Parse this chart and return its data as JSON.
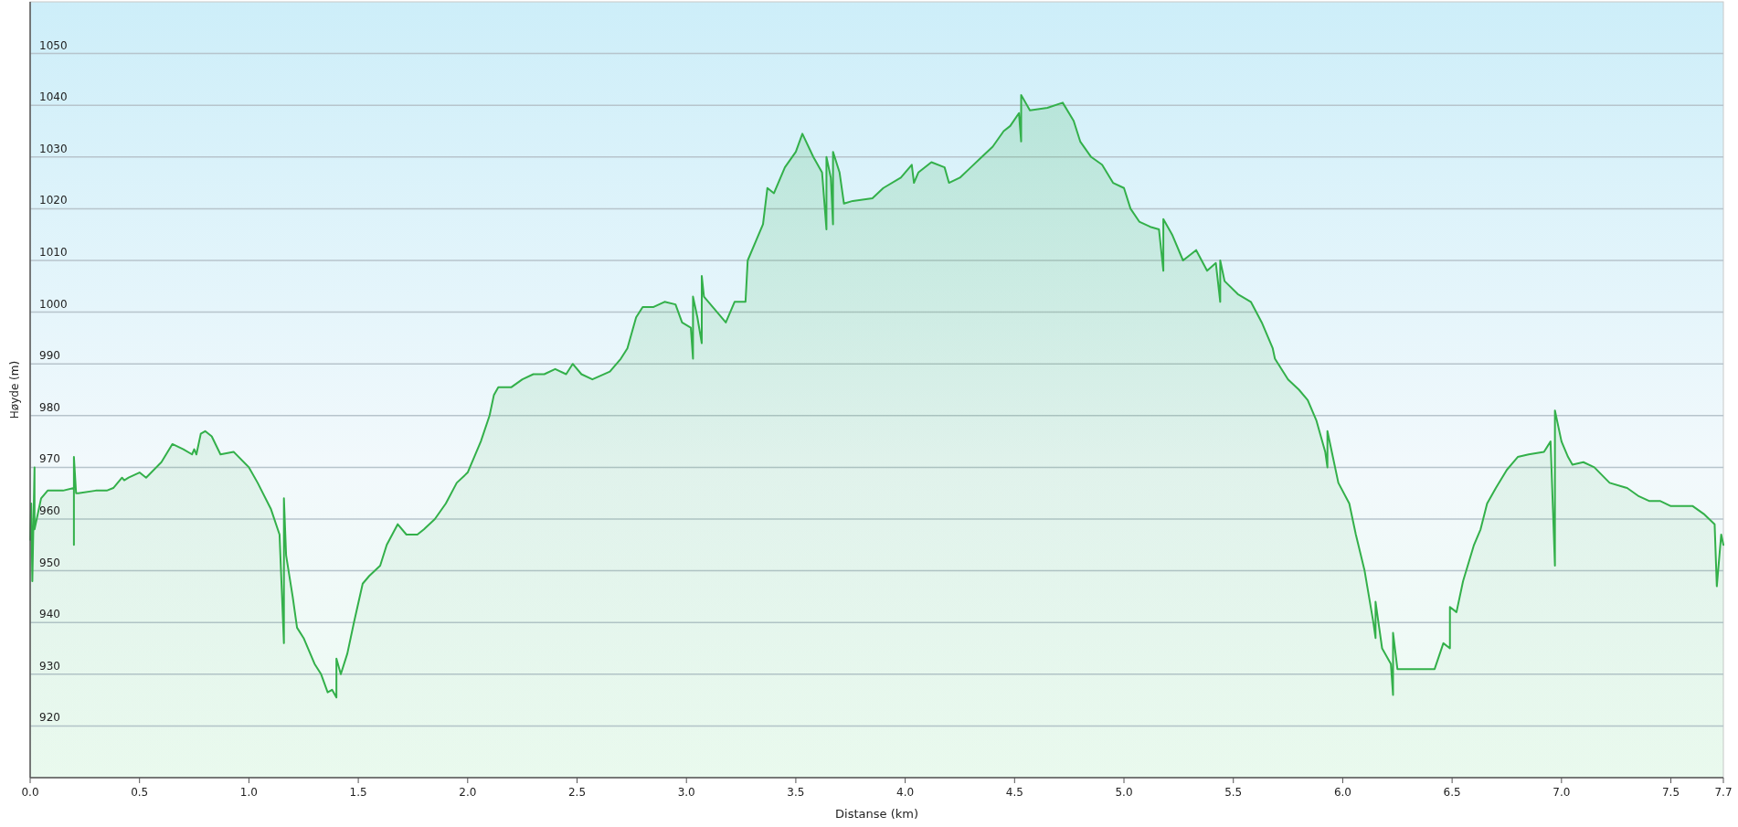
{
  "chart_data": {
    "type": "area",
    "xlabel": "Distanse  (km)",
    "ylabel": "Høyde (m)",
    "grid": "y",
    "marker": "none",
    "line_style": "solid",
    "xlim": [
      0,
      7.74
    ],
    "xticks": [
      {
        "value": 0,
        "label": "0.0"
      },
      0.5,
      {
        "value": 1,
        "label": "1.0"
      },
      1.5,
      {
        "value": 2,
        "label": "2.0"
      },
      2.5,
      {
        "value": 3,
        "label": "3.0"
      },
      3.5,
      {
        "value": 4,
        "label": "4.0"
      },
      4.5,
      {
        "value": 5,
        "label": "5.0"
      },
      5.5,
      {
        "value": 6,
        "label": "6.0"
      },
      6.5,
      {
        "value": 7,
        "label": "7.0"
      },
      7.5,
      {
        "value": 7.74,
        "label": "7.7"
      }
    ],
    "ylim": [
      910,
      1060
    ],
    "yticks": [
      920,
      930,
      940,
      950,
      960,
      970,
      980,
      990,
      1000,
      1010,
      1020,
      1030,
      1040,
      1050
    ],
    "series": [
      {
        "color": "#33b04a",
        "x": [
          0,
          0.005,
          0.01,
          0.02,
          0.02,
          0.03,
          0.05,
          0.08,
          0.15,
          0.2,
          0.2,
          0.2,
          0.21,
          0.22,
          0.3,
          0.35,
          0.38,
          0.42,
          0.43,
          0.45,
          0.5,
          0.53,
          0.6,
          0.65,
          0.7,
          0.74,
          0.75,
          0.76,
          0.78,
          0.8,
          0.83,
          0.87,
          0.93,
          1.0,
          1.04,
          1.1,
          1.14,
          1.16,
          1.16,
          1.17,
          1.2,
          1.22,
          1.25,
          1.3,
          1.33,
          1.36,
          1.38,
          1.4,
          1.4,
          1.42,
          1.45,
          1.48,
          1.52,
          1.55,
          1.6,
          1.63,
          1.68,
          1.72,
          1.77,
          1.8,
          1.85,
          1.9,
          1.95,
          2.0,
          2.03,
          2.06,
          2.1,
          2.12,
          2.14,
          2.2,
          2.25,
          2.3,
          2.35,
          2.4,
          2.45,
          2.48,
          2.52,
          2.57,
          2.65,
          2.7,
          2.73,
          2.77,
          2.8,
          2.85,
          2.9,
          2.95,
          2.98,
          3.02,
          3.03,
          3.03,
          3.05,
          3.07,
          3.07,
          3.08,
          3.15,
          3.18,
          3.22,
          3.27,
          3.28,
          3.32,
          3.35,
          3.37,
          3.4,
          3.45,
          3.5,
          3.53,
          3.58,
          3.62,
          3.64,
          3.64,
          3.66,
          3.67,
          3.67,
          3.7,
          3.72,
          3.76,
          3.85,
          3.9,
          3.98,
          4.03,
          4.04,
          4.06,
          4.12,
          4.18,
          4.2,
          4.25,
          4.3,
          4.35,
          4.4,
          4.45,
          4.48,
          4.52,
          4.53,
          4.53,
          4.57,
          4.65,
          4.72,
          4.77,
          4.8,
          4.85,
          4.9,
          4.95,
          5.0,
          5.03,
          5.07,
          5.12,
          5.16,
          5.18,
          5.18,
          5.22,
          5.27,
          5.33,
          5.38,
          5.42,
          5.44,
          5.44,
          5.46,
          5.52,
          5.58,
          5.63,
          5.68,
          5.69,
          5.75,
          5.8,
          5.84,
          5.88,
          5.92,
          5.93,
          5.93,
          5.98,
          6.03,
          6.06,
          6.1,
          6.14,
          6.15,
          6.15,
          6.18,
          6.22,
          6.23,
          6.23,
          6.25,
          6.3,
          6.42,
          6.46,
          6.49,
          6.49,
          6.52,
          6.55,
          6.6,
          6.63,
          6.66,
          6.7,
          6.75,
          6.8,
          6.85,
          6.92,
          6.95,
          6.97,
          6.97,
          7.0,
          7.03,
          7.05,
          7.1,
          7.15,
          7.22,
          7.3,
          7.35,
          7.4,
          7.45,
          7.5,
          7.55,
          7.6,
          7.65,
          7.7,
          7.71,
          7.73,
          7.74
        ],
        "values": [
          956,
          963,
          948,
          970,
          958,
          960,
          964,
          965.5,
          965.5,
          966,
          955,
          972,
          965,
          965,
          965.5,
          965.5,
          966,
          968,
          967.5,
          968,
          969,
          968,
          971,
          974.5,
          973.5,
          972.5,
          973.5,
          972.5,
          976.5,
          977,
          976,
          972.5,
          973,
          970,
          967,
          962,
          957,
          936,
          964,
          953,
          945,
          939,
          937,
          932,
          930,
          926.5,
          927,
          925.5,
          933,
          930,
          934,
          940,
          947.5,
          949,
          951,
          955,
          959,
          957,
          957,
          958,
          960,
          963,
          967,
          969,
          972,
          975,
          980,
          984,
          985.5,
          985.5,
          987,
          988,
          988,
          989,
          988,
          990,
          988,
          987,
          988.5,
          991,
          993,
          999,
          1001,
          1001,
          1002,
          1001.5,
          998,
          997,
          991,
          1003,
          999,
          994,
          1007,
          1003,
          999.5,
          998,
          1002,
          1002,
          1010,
          1014,
          1017,
          1024,
          1023,
          1028,
          1031,
          1034.5,
          1030,
          1027,
          1016,
          1030,
          1026,
          1017,
          1031,
          1027,
          1021,
          1021.5,
          1022,
          1024,
          1026,
          1028.5,
          1025,
          1027,
          1029,
          1028,
          1025,
          1026,
          1028,
          1030,
          1032,
          1035,
          1036,
          1038.5,
          1033,
          1042,
          1039,
          1039.5,
          1040.5,
          1037,
          1033,
          1030,
          1028.5,
          1025,
          1024,
          1020,
          1017.5,
          1016.5,
          1016,
          1008,
          1018,
          1015,
          1010,
          1012,
          1008,
          1009.5,
          1002,
          1010,
          1006,
          1003.5,
          1002,
          998,
          993,
          991,
          987,
          985,
          983,
          979,
          973,
          970,
          977,
          967,
          963,
          957,
          950,
          940,
          937,
          944,
          935,
          932,
          926,
          938,
          931,
          931,
          931,
          936,
          935,
          943,
          942,
          948,
          955,
          958,
          963,
          966,
          969.5,
          972,
          972.5,
          973,
          975,
          951,
          981,
          975,
          972,
          970.5,
          971,
          970,
          967,
          966,
          964.5,
          963.5,
          963.5,
          962.5,
          962.5,
          962.5,
          961,
          959,
          947,
          957,
          955
        ]
      }
    ]
  }
}
